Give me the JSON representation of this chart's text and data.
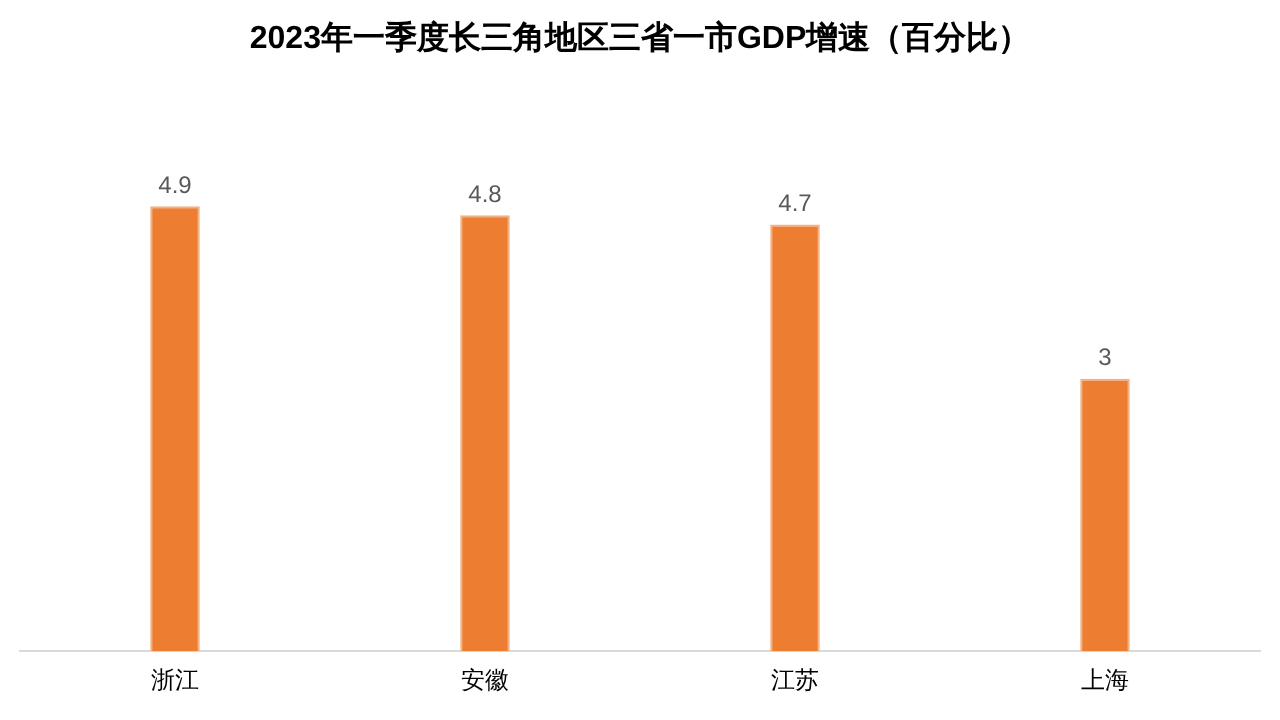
{
  "chart_data": {
    "type": "bar",
    "title": "2023年一季度长三角地区三省一市GDP增速（百分比）",
    "categories": [
      "浙江",
      "安徽",
      "江苏",
      "上海"
    ],
    "values": [
      4.9,
      4.8,
      4.7,
      3
    ],
    "color": "#ed7d31",
    "data_labels": true,
    "grid": false,
    "legend": false
  }
}
